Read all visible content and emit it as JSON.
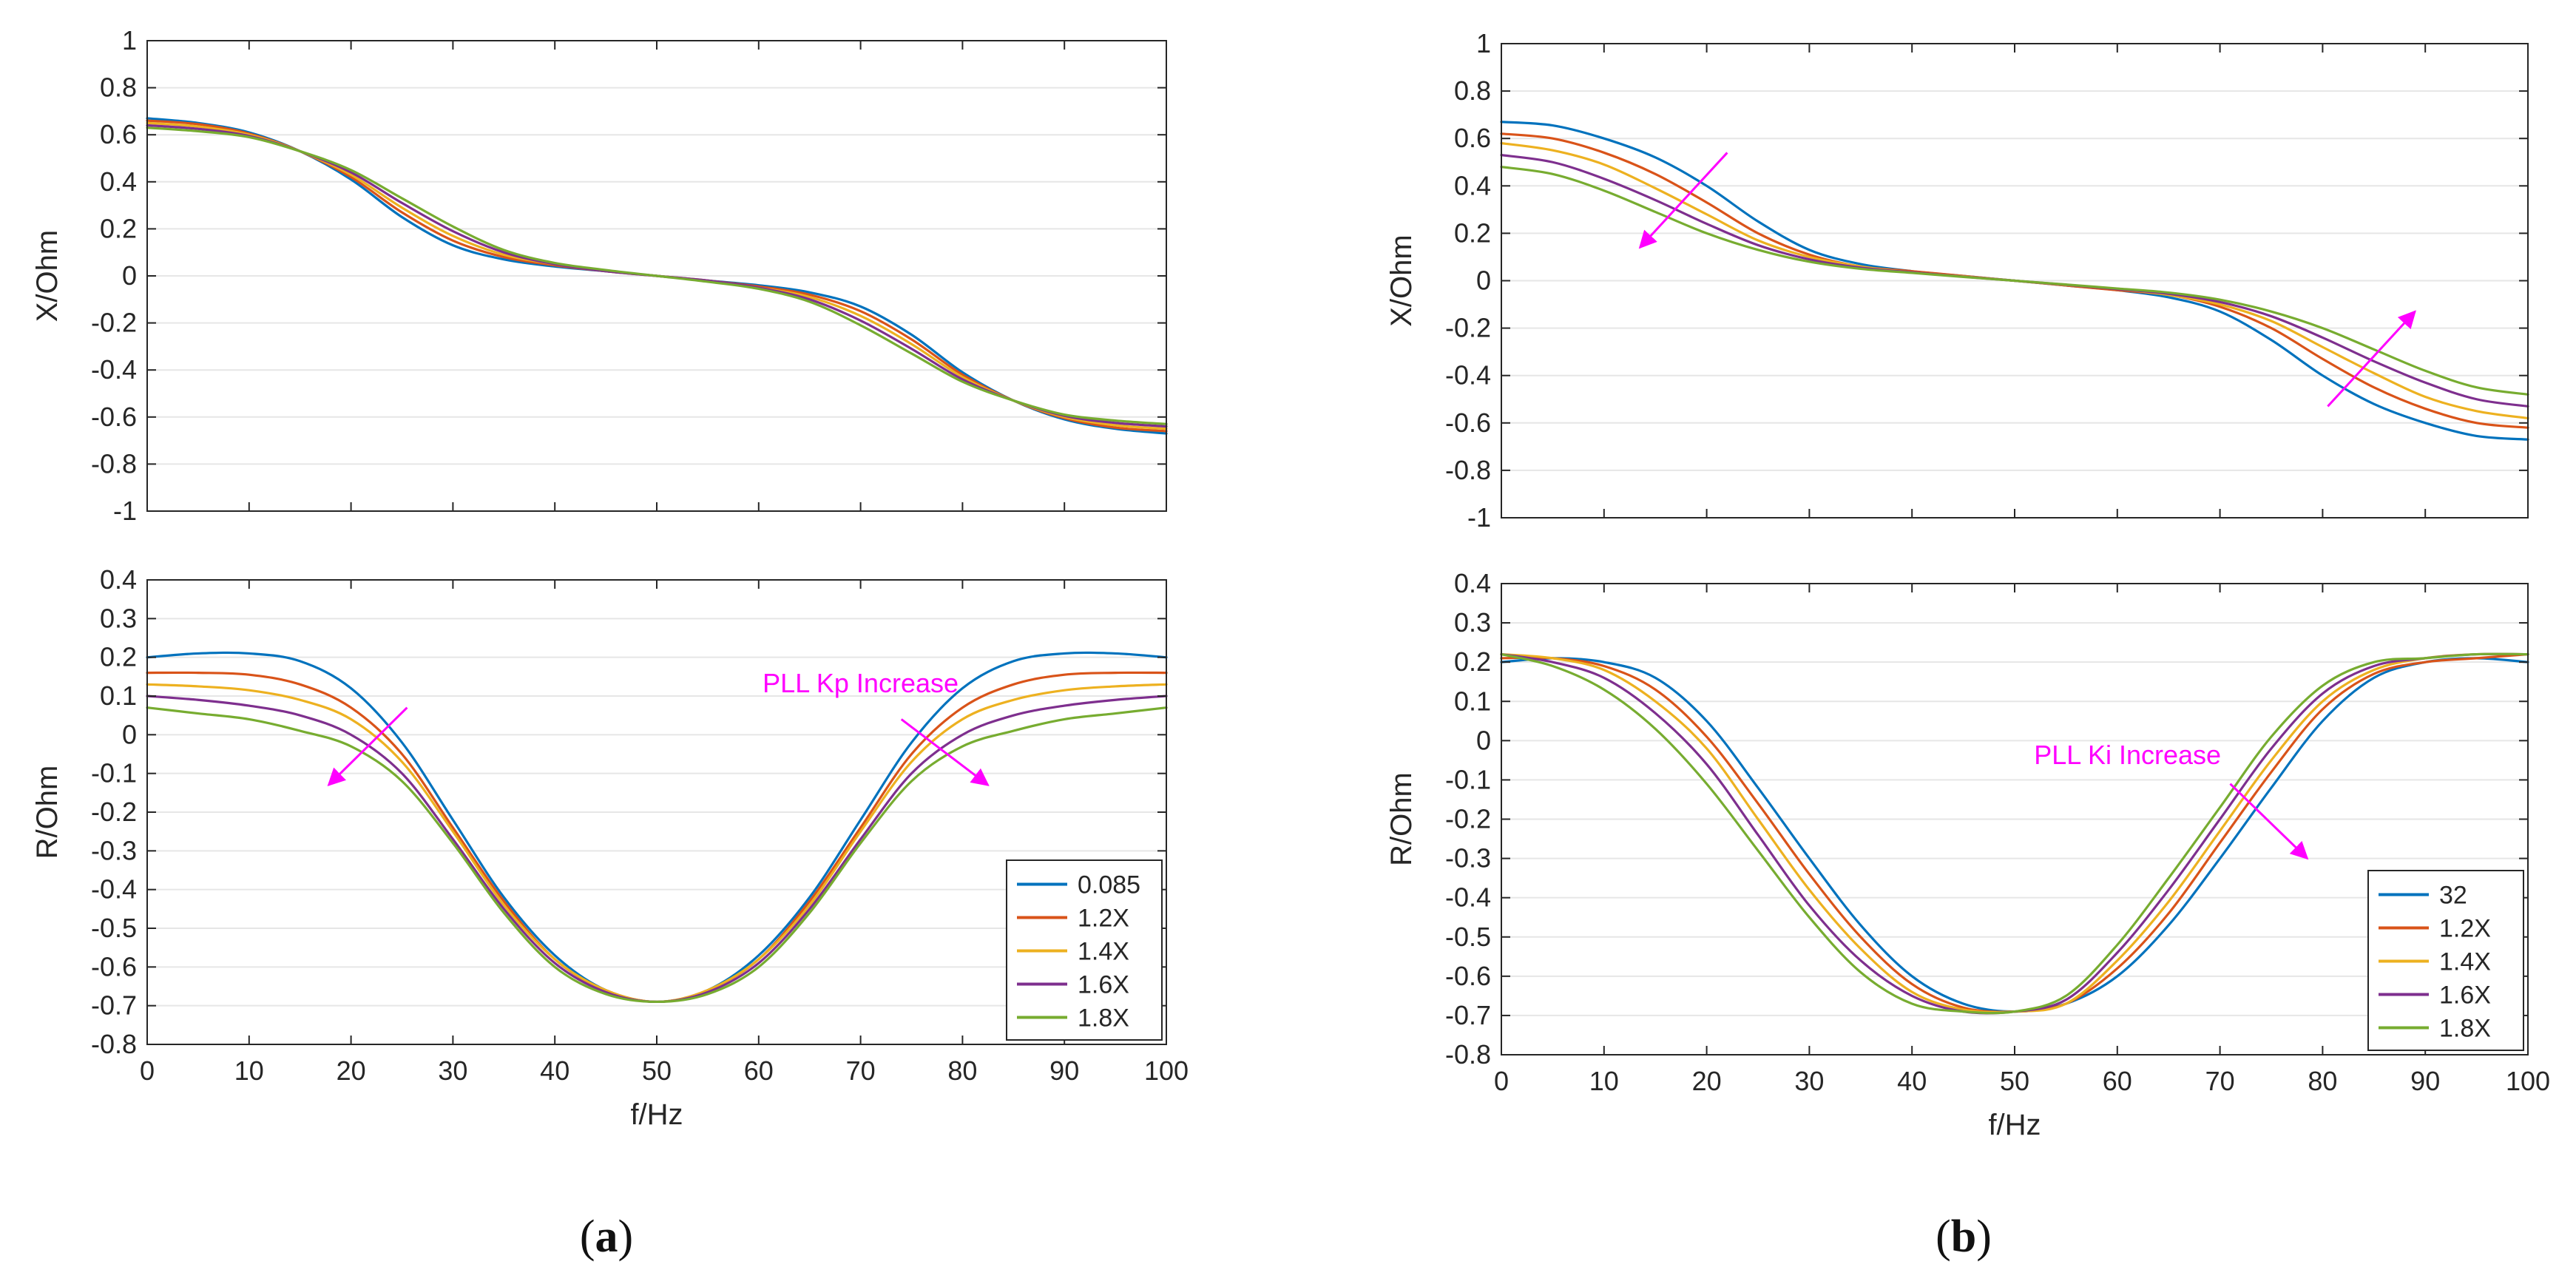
{
  "colors": {
    "series": [
      "#0072BD",
      "#D95319",
      "#EDB120",
      "#7E2F8E",
      "#77AC30"
    ],
    "annotation": "#FF00FF",
    "grid": "#e6e6e6",
    "axis": "#262626"
  },
  "captions": {
    "a": {
      "open": "(",
      "letter": "a",
      "close": ")"
    },
    "b": {
      "open": "(",
      "letter": "b",
      "close": ")"
    }
  },
  "chart_data": [
    {
      "type": "line",
      "panel": "a-top",
      "title": "",
      "xlabel": "",
      "ylabel": "X/Ohm",
      "xlim": [
        0,
        100
      ],
      "ylim": [
        -1,
        1
      ],
      "xticks": [
        0,
        10,
        20,
        30,
        40,
        50,
        60,
        70,
        80,
        90,
        100
      ],
      "yticks": [
        -1,
        -0.8,
        -0.6,
        -0.4,
        -0.2,
        0,
        0.2,
        0.4,
        0.6,
        0.8,
        1
      ],
      "ytick_labels": [
        "-1",
        "-0.8",
        "-0.6",
        "-0.4",
        "-0.2",
        "0",
        "0.2",
        "0.4",
        "0.6",
        "0.8",
        "1"
      ],
      "show_xtick_labels": false,
      "grid": "y",
      "x": [
        0,
        5,
        10,
        15,
        20,
        25,
        30,
        35,
        40,
        45,
        50,
        55,
        60,
        65,
        70,
        75,
        80,
        85,
        90,
        95,
        100
      ],
      "series": [
        {
          "name": "0.085",
          "values": [
            0.67,
            0.65,
            0.61,
            0.53,
            0.41,
            0.25,
            0.13,
            0.07,
            0.04,
            0.02,
            0,
            -0.02,
            -0.04,
            -0.07,
            -0.13,
            -0.25,
            -0.41,
            -0.53,
            -0.61,
            -0.65,
            -0.67
          ]
        },
        {
          "name": "1.2X",
          "values": [
            0.66,
            0.645,
            0.605,
            0.53,
            0.42,
            0.27,
            0.15,
            0.08,
            0.045,
            0.02,
            0,
            -0.02,
            -0.045,
            -0.08,
            -0.15,
            -0.27,
            -0.42,
            -0.53,
            -0.605,
            -0.645,
            -0.66
          ]
        },
        {
          "name": "1.4X",
          "values": [
            0.65,
            0.635,
            0.6,
            0.53,
            0.43,
            0.29,
            0.17,
            0.09,
            0.05,
            0.02,
            0,
            -0.02,
            -0.05,
            -0.09,
            -0.17,
            -0.29,
            -0.43,
            -0.53,
            -0.6,
            -0.635,
            -0.65
          ]
        },
        {
          "name": "1.6X",
          "values": [
            0.64,
            0.625,
            0.595,
            0.53,
            0.44,
            0.31,
            0.19,
            0.1,
            0.05,
            0.02,
            0,
            -0.02,
            -0.05,
            -0.1,
            -0.19,
            -0.31,
            -0.44,
            -0.53,
            -0.595,
            -0.625,
            -0.64
          ]
        },
        {
          "name": "1.8X",
          "values": [
            0.63,
            0.615,
            0.59,
            0.53,
            0.45,
            0.33,
            0.21,
            0.11,
            0.055,
            0.025,
            0,
            -0.025,
            -0.055,
            -0.11,
            -0.21,
            -0.33,
            -0.45,
            -0.53,
            -0.59,
            -0.615,
            -0.63
          ]
        }
      ],
      "annotations": []
    },
    {
      "type": "line",
      "panel": "a-bottom",
      "title": "",
      "xlabel": "f/Hz",
      "ylabel": "R/Ohm",
      "xlim": [
        0,
        100
      ],
      "ylim": [
        -0.8,
        0.4
      ],
      "xticks": [
        0,
        10,
        20,
        30,
        40,
        50,
        60,
        70,
        80,
        90,
        100
      ],
      "yticks": [
        -0.8,
        -0.7,
        -0.6,
        -0.5,
        -0.4,
        -0.3,
        -0.2,
        -0.1,
        0,
        0.1,
        0.2,
        0.3,
        0.4
      ],
      "ytick_labels": [
        "-0.8",
        "-0.7",
        "-0.6",
        "-0.5",
        "-0.4",
        "-0.3",
        "-0.2",
        "-0.1",
        "0",
        "0.1",
        "0.2",
        "0.3",
        "0.4"
      ],
      "show_xtick_labels": true,
      "grid": "y",
      "legend": {
        "position": "bottom-right",
        "entries": [
          "0.085",
          "1.2X",
          "1.4X",
          "1.6X",
          "1.8X"
        ]
      },
      "x": [
        0,
        5,
        10,
        15,
        20,
        25,
        30,
        35,
        40,
        45,
        50,
        55,
        60,
        65,
        70,
        75,
        80,
        85,
        90,
        95,
        100
      ],
      "series": [
        {
          "name": "0.085",
          "values": [
            0.2,
            0.21,
            0.21,
            0.19,
            0.12,
            -0.02,
            -0.22,
            -0.42,
            -0.57,
            -0.66,
            -0.69,
            -0.66,
            -0.57,
            -0.42,
            -0.22,
            -0.02,
            0.12,
            0.19,
            0.21,
            0.21,
            0.2
          ]
        },
        {
          "name": "1.2X",
          "values": [
            0.16,
            0.16,
            0.155,
            0.13,
            0.07,
            -0.05,
            -0.24,
            -0.43,
            -0.58,
            -0.66,
            -0.69,
            -0.66,
            -0.58,
            -0.43,
            -0.24,
            -0.05,
            0.07,
            0.13,
            0.155,
            0.16,
            0.16
          ]
        },
        {
          "name": "1.4X",
          "values": [
            0.13,
            0.125,
            0.115,
            0.09,
            0.04,
            -0.07,
            -0.25,
            -0.44,
            -0.58,
            -0.66,
            -0.69,
            -0.66,
            -0.58,
            -0.44,
            -0.25,
            -0.07,
            0.04,
            0.09,
            0.115,
            0.125,
            0.13
          ]
        },
        {
          "name": "1.6X",
          "values": [
            0.1,
            0.09,
            0.075,
            0.05,
            0.0,
            -0.1,
            -0.27,
            -0.45,
            -0.59,
            -0.665,
            -0.69,
            -0.665,
            -0.59,
            -0.45,
            -0.27,
            -0.1,
            0.0,
            0.05,
            0.075,
            0.09,
            0.1
          ]
        },
        {
          "name": "1.8X",
          "values": [
            0.07,
            0.055,
            0.04,
            0.01,
            -0.03,
            -0.12,
            -0.28,
            -0.46,
            -0.6,
            -0.67,
            -0.69,
            -0.67,
            -0.6,
            -0.46,
            -0.28,
            -0.12,
            -0.03,
            0.01,
            0.04,
            0.055,
            0.07
          ]
        }
      ],
      "annotations": [
        {
          "text": "",
          "arrow": {
            "from": [
              25.5,
              0.07
            ],
            "to": [
              17.8,
              -0.13
            ]
          }
        },
        {
          "text": "PLL Kp Increase",
          "text_at": [
            70,
            0.11
          ],
          "text_anchor": "middle",
          "arrow": {
            "from": [
              74,
              0.04
            ],
            "to": [
              82.5,
              -0.13
            ]
          }
        }
      ]
    },
    {
      "type": "line",
      "panel": "b-top",
      "title": "",
      "xlabel": "",
      "ylabel": "X/Ohm",
      "xlim": [
        0,
        100
      ],
      "ylim": [
        -1,
        1
      ],
      "xticks": [
        0,
        10,
        20,
        30,
        40,
        50,
        60,
        70,
        80,
        90,
        100
      ],
      "yticks": [
        -1,
        -0.8,
        -0.6,
        -0.4,
        -0.2,
        0,
        0.2,
        0.4,
        0.6,
        0.8,
        1
      ],
      "ytick_labels": [
        "-1",
        "-0.8",
        "-0.6",
        "-0.4",
        "-0.2",
        "0",
        "0.2",
        "0.4",
        "0.6",
        "0.8",
        "1"
      ],
      "show_xtick_labels": false,
      "grid": "y",
      "x": [
        0,
        5,
        10,
        15,
        20,
        25,
        30,
        35,
        40,
        45,
        50,
        55,
        60,
        65,
        70,
        75,
        80,
        85,
        90,
        95,
        100
      ],
      "series": [
        {
          "name": "32",
          "values": [
            0.67,
            0.655,
            0.6,
            0.52,
            0.4,
            0.25,
            0.13,
            0.07,
            0.04,
            0.02,
            0,
            -0.02,
            -0.04,
            -0.07,
            -0.13,
            -0.25,
            -0.4,
            -0.52,
            -0.6,
            -0.655,
            -0.67
          ]
        },
        {
          "name": "1.2X",
          "values": [
            0.62,
            0.6,
            0.54,
            0.45,
            0.33,
            0.2,
            0.11,
            0.06,
            0.04,
            0.02,
            0,
            -0.02,
            -0.04,
            -0.06,
            -0.11,
            -0.2,
            -0.33,
            -0.45,
            -0.54,
            -0.6,
            -0.62
          ]
        },
        {
          "name": "1.4X",
          "values": [
            0.58,
            0.55,
            0.49,
            0.39,
            0.28,
            0.17,
            0.1,
            0.06,
            0.035,
            0.018,
            0,
            -0.018,
            -0.035,
            -0.06,
            -0.1,
            -0.17,
            -0.28,
            -0.39,
            -0.49,
            -0.55,
            -0.58
          ]
        },
        {
          "name": "1.6X",
          "values": [
            0.53,
            0.5,
            0.43,
            0.34,
            0.24,
            0.15,
            0.09,
            0.055,
            0.035,
            0.017,
            0,
            -0.017,
            -0.035,
            -0.055,
            -0.09,
            -0.15,
            -0.24,
            -0.34,
            -0.43,
            -0.5,
            -0.53
          ]
        },
        {
          "name": "1.8X",
          "values": [
            0.48,
            0.45,
            0.38,
            0.29,
            0.2,
            0.13,
            0.08,
            0.05,
            0.033,
            0.016,
            0,
            -0.016,
            -0.033,
            -0.05,
            -0.08,
            -0.13,
            -0.2,
            -0.29,
            -0.38,
            -0.45,
            -0.48
          ]
        }
      ],
      "annotations": [
        {
          "text": "",
          "arrow": {
            "from": [
              22,
              0.54
            ],
            "to": [
              13.5,
              0.14
            ]
          }
        },
        {
          "text": "",
          "arrow": {
            "from": [
              80.5,
              -0.53
            ],
            "to": [
              89,
              -0.13
            ]
          }
        }
      ]
    },
    {
      "type": "line",
      "panel": "b-bottom",
      "title": "",
      "xlabel": "f/Hz",
      "ylabel": "R/Ohm",
      "xlim": [
        0,
        100
      ],
      "ylim": [
        -0.8,
        0.4
      ],
      "xticks": [
        0,
        10,
        20,
        30,
        40,
        50,
        60,
        70,
        80,
        90,
        100
      ],
      "yticks": [
        -0.8,
        -0.7,
        -0.6,
        -0.5,
        -0.4,
        -0.3,
        -0.2,
        -0.1,
        0,
        0.1,
        0.2,
        0.3,
        0.4
      ],
      "ytick_labels": [
        "-0.8",
        "-0.7",
        "-0.6",
        "-0.5",
        "-0.4",
        "-0.3",
        "-0.2",
        "-0.1",
        "0",
        "0.1",
        "0.2",
        "0.3",
        "0.4"
      ],
      "show_xtick_labels": true,
      "grid": "y",
      "legend": {
        "position": "bottom-right",
        "entries": [
          "32",
          "1.2X",
          "1.4X",
          "1.6X",
          "1.8X"
        ]
      },
      "x": [
        0,
        5,
        10,
        15,
        20,
        25,
        30,
        35,
        40,
        45,
        50,
        55,
        60,
        65,
        70,
        75,
        80,
        85,
        90,
        95,
        100
      ],
      "series": [
        {
          "name": "32",
          "values": [
            0.2,
            0.21,
            0.2,
            0.16,
            0.05,
            -0.12,
            -0.3,
            -0.47,
            -0.6,
            -0.67,
            -0.69,
            -0.67,
            -0.6,
            -0.47,
            -0.3,
            -0.12,
            0.05,
            0.16,
            0.2,
            0.21,
            0.2
          ]
        },
        {
          "name": "1.2X",
          "values": [
            0.21,
            0.21,
            0.19,
            0.13,
            0.01,
            -0.16,
            -0.34,
            -0.5,
            -0.62,
            -0.68,
            -0.69,
            -0.67,
            -0.58,
            -0.44,
            -0.26,
            -0.08,
            0.08,
            0.17,
            0.2,
            0.21,
            0.22
          ]
        },
        {
          "name": "1.4X",
          "values": [
            0.22,
            0.21,
            0.18,
            0.1,
            -0.02,
            -0.2,
            -0.38,
            -0.53,
            -0.64,
            -0.685,
            -0.69,
            -0.67,
            -0.56,
            -0.41,
            -0.23,
            -0.05,
            0.1,
            0.18,
            0.21,
            0.22,
            0.22
          ]
        },
        {
          "name": "1.6X",
          "values": [
            0.22,
            0.2,
            0.16,
            0.07,
            -0.06,
            -0.24,
            -0.42,
            -0.56,
            -0.65,
            -0.69,
            -0.69,
            -0.66,
            -0.54,
            -0.38,
            -0.2,
            -0.02,
            0.12,
            0.19,
            0.21,
            0.22,
            0.22
          ]
        },
        {
          "name": "1.8X",
          "values": [
            0.22,
            0.19,
            0.13,
            0.03,
            -0.11,
            -0.28,
            -0.45,
            -0.59,
            -0.67,
            -0.69,
            -0.69,
            -0.65,
            -0.52,
            -0.35,
            -0.17,
            0.01,
            0.14,
            0.2,
            0.21,
            0.22,
            0.22
          ]
        }
      ],
      "annotations": [
        {
          "text": "PLL Ki Increase",
          "text_at": [
            61,
            -0.06
          ],
          "text_anchor": "middle",
          "arrow": {
            "from": [
              71,
              -0.11
            ],
            "to": [
              78.5,
              -0.3
            ]
          }
        }
      ]
    }
  ]
}
